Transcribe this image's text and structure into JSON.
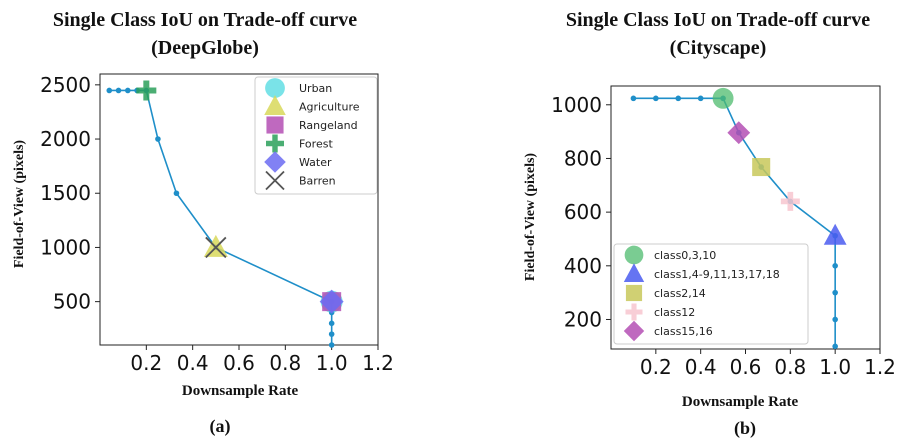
{
  "chart_data": [
    {
      "type": "line",
      "title": "Single Class IoU on Trade-off curve",
      "subtitle": "(DeepGlobe)",
      "xlabel": "Downsample Rate",
      "ylabel": "Field-of-View (pixels)",
      "caption": "(a)",
      "xlim": [
        0.0,
        1.2
      ],
      "ylim": [
        100,
        2600
      ],
      "xticks": [
        0.2,
        0.4,
        0.6,
        0.8,
        1.0,
        1.2
      ],
      "xtick_labels": [
        "0.2",
        "0.4",
        "0.6",
        "0.8",
        "1.0",
        "1.2"
      ],
      "yticks": [
        500,
        1000,
        1500,
        2000,
        2500
      ],
      "ytick_labels": [
        "500",
        "1000",
        "1500",
        "2000",
        "2500"
      ],
      "line_color": "#1f8fc9",
      "curve": {
        "x": [
          0.04,
          0.08,
          0.12,
          0.16,
          0.2,
          0.25,
          0.33,
          0.5,
          1.0,
          1.0,
          1.0,
          1.0,
          1.0
        ],
        "y": [
          2448,
          2448,
          2448,
          2448,
          2448,
          2000,
          1500,
          1000,
          500,
          400,
          300,
          200,
          100
        ]
      },
      "legend_position": "top-right",
      "grid": false,
      "classes": [
        {
          "name": "Urban",
          "marker": "circle",
          "color": "#4dd9e0",
          "x": 1.0,
          "y": 500
        },
        {
          "name": "Agriculture",
          "marker": "triangle",
          "color": "#d8d85a",
          "x": 0.5,
          "y": 1000
        },
        {
          "name": "Rangeland",
          "marker": "square",
          "color": "#b44fb4",
          "x": 1.0,
          "y": 500
        },
        {
          "name": "Forest",
          "marker": "plus",
          "color": "#2ca05a",
          "x": 0.2,
          "y": 2448
        },
        {
          "name": "Water",
          "marker": "diamond",
          "color": "#6b6bf2",
          "x": 1.0,
          "y": 500
        },
        {
          "name": "Barren",
          "marker": "x",
          "color": "#555555",
          "x": 0.5,
          "y": 1000
        }
      ]
    },
    {
      "type": "line",
      "title": "Single Class IoU on Trade-off curve",
      "subtitle": "(Cityscape)",
      "xlabel": "Downsample Rate",
      "ylabel": "Field-of-View (pixels)",
      "caption": "(b)",
      "xlim": [
        0.0,
        1.2
      ],
      "ylim": [
        90,
        1070
      ],
      "xticks": [
        0.2,
        0.4,
        0.6,
        0.8,
        1.0,
        1.2
      ],
      "xtick_labels": [
        "0.2",
        "0.4",
        "0.6",
        "0.8",
        "1.0",
        "1.2"
      ],
      "yticks": [
        200,
        400,
        600,
        800,
        1000
      ],
      "ytick_labels": [
        "200",
        "400",
        "600",
        "800",
        "1000"
      ],
      "line_color": "#1f8fc9",
      "curve": {
        "x": [
          0.1,
          0.2,
          0.3,
          0.4,
          0.5,
          0.57,
          0.67,
          0.8,
          1.0,
          1.0,
          1.0,
          1.0,
          1.0
        ],
        "y": [
          1024,
          1024,
          1024,
          1024,
          1024,
          896,
          768,
          640,
          512,
          400,
          300,
          200,
          100
        ]
      },
      "legend_position": "lower-left",
      "grid": false,
      "classes": [
        {
          "name": "class0,3,10",
          "marker": "circle",
          "color": "#4dbb6e",
          "x": 0.5,
          "y": 1024
        },
        {
          "name": "class1,4-9,11,13,17,18",
          "marker": "triangle",
          "color": "#4a5cf0",
          "x": 1.0,
          "y": 512
        },
        {
          "name": "class2,14",
          "marker": "square",
          "color": "#c8c85a",
          "x": 0.67,
          "y": 768
        },
        {
          "name": "class12",
          "marker": "plus",
          "color": "#f7c6cf",
          "x": 0.8,
          "y": 640
        },
        {
          "name": "class15,16",
          "marker": "diamond",
          "color": "#b44fb4",
          "x": 0.57,
          "y": 896
        }
      ]
    }
  ]
}
